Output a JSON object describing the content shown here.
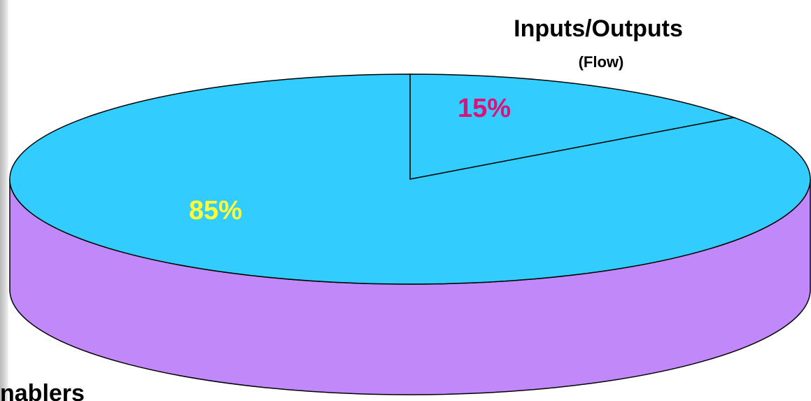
{
  "chart_data": {
    "type": "pie",
    "style": "3d",
    "slices": [
      {
        "label": "Inputs/Outputs",
        "sublabel": "(Flow)",
        "value": 15,
        "value_label": "15%",
        "top_color": "#33ccff",
        "side_color": "#c088f8",
        "value_label_color": "#dd1177"
      },
      {
        "label": "Enablers",
        "sublabel": "",
        "value": 85,
        "value_label": "85%",
        "top_color": "#33ccff",
        "side_color": "#c088f8",
        "value_label_color": "#ffff33"
      }
    ],
    "title": "",
    "legend": "none"
  },
  "labels": {
    "inputs_outputs": "Inputs/Outputs",
    "flow": "(Flow)",
    "pct_15": "15%",
    "pct_85": "85%",
    "enablers": "nablers"
  },
  "colors": {
    "top": "#33ccff",
    "side": "#c088f8",
    "outline": "#000000",
    "label_15": "#dd1177",
    "label_85": "#ffff33",
    "text": "#000000"
  }
}
